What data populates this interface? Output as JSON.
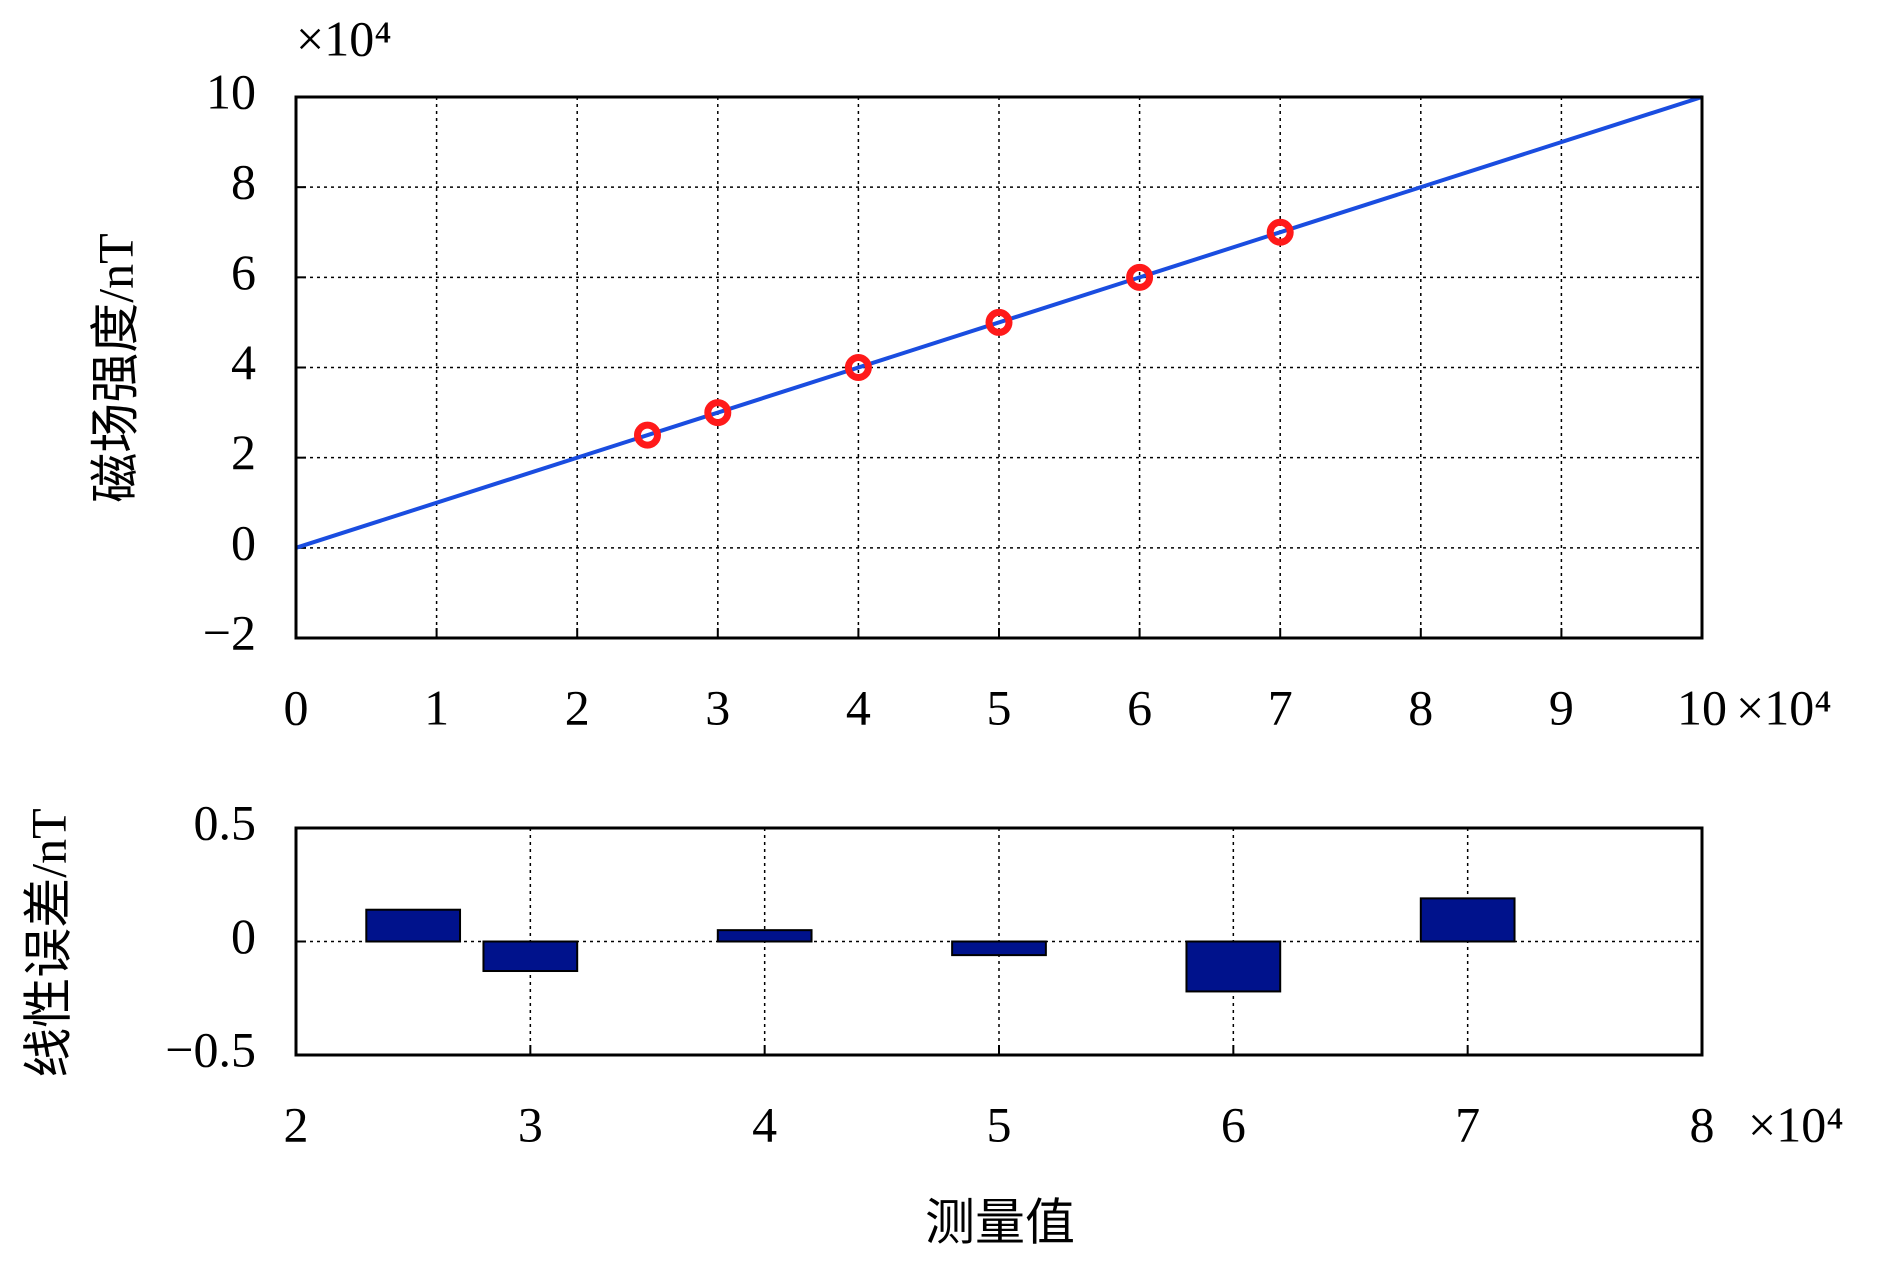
{
  "chart_data": [
    {
      "type": "line",
      "ylabel": "磁场强度/nT",
      "x_multiplier": "×10⁴",
      "y_multiplier": "×10⁴",
      "xlim": [
        0,
        10
      ],
      "xticks": [
        0,
        1,
        2,
        3,
        4,
        5,
        6,
        7,
        8,
        9,
        10
      ],
      "ylim": [
        -2,
        10
      ],
      "yticks": [
        {
          "value": -2,
          "label": "−2"
        },
        0,
        2,
        4,
        6,
        8,
        10
      ],
      "grid": true,
      "series": [
        {
          "type": "line",
          "color": "#1a4de0",
          "x": [
            0,
            10
          ],
          "values": [
            0,
            10
          ]
        },
        {
          "type": "scatter",
          "color": "#ff1a1a",
          "x": [
            2.5,
            3,
            4,
            5,
            6,
            7
          ],
          "values": [
            2.5,
            3,
            4,
            5,
            6,
            7
          ]
        }
      ]
    },
    {
      "type": "bar",
      "ylabel": "线性误差/nT",
      "xlabel": "测量值",
      "x_multiplier": "×10⁴",
      "xlim": [
        2,
        8
      ],
      "xticks": [
        2,
        3,
        4,
        5,
        6,
        7,
        8
      ],
      "ylim": [
        -0.5,
        0.5
      ],
      "yticks": [
        {
          "value": -0.5,
          "label": "−0.5"
        },
        0,
        0.5
      ],
      "grid": true,
      "color": "#00128c",
      "x": [
        2.5,
        3,
        4,
        5,
        6,
        7
      ],
      "values": [
        0.14,
        -0.13,
        0.05,
        -0.06,
        -0.22,
        0.19
      ]
    }
  ]
}
